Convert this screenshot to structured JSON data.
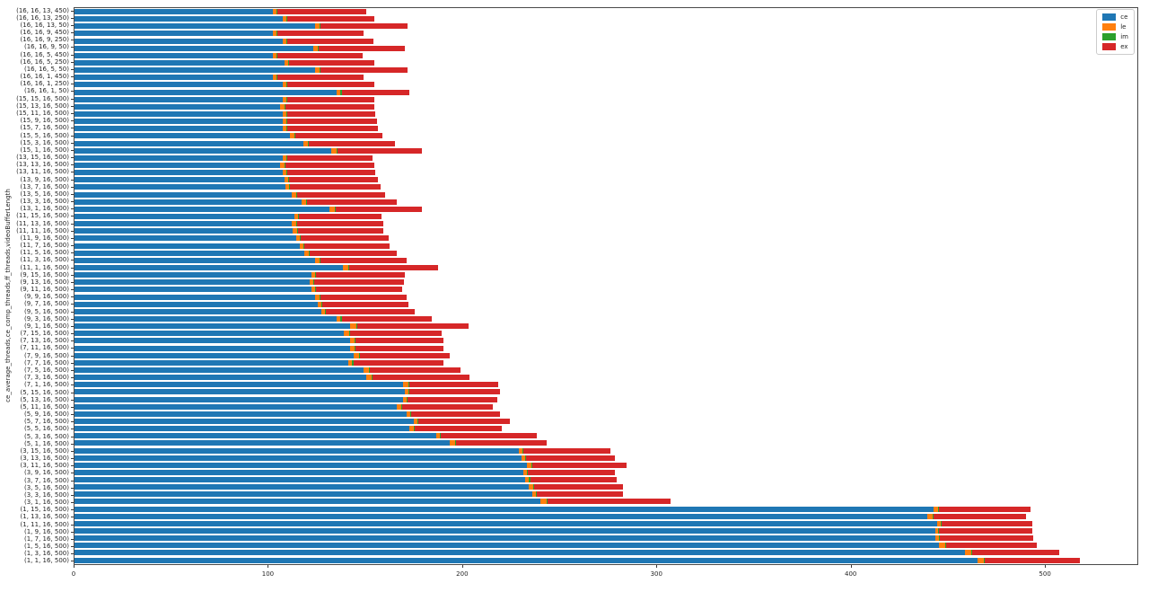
{
  "chart_data": {
    "type": "bar",
    "orientation": "horizontal",
    "stacked": true,
    "title": "",
    "xlabel": "",
    "ylabel": "ce_average_threads,ce_comp_threads,ff_threads,videoBufferLength",
    "xlim": [
      0,
      548
    ],
    "xticks": [
      0,
      100,
      200,
      300,
      400,
      500
    ],
    "grid": false,
    "legend_position": "upper right",
    "categories": [
      "(16, 16, 13, 450)",
      "(16, 16, 13, 250)",
      "(16, 16, 13, 50)",
      "(16, 16, 9, 450)",
      "(16, 16, 9, 250)",
      "(16, 16, 9, 50)",
      "(16, 16, 5, 450)",
      "(16, 16, 5, 250)",
      "(16, 16, 5, 50)",
      "(16, 16, 1, 450)",
      "(16, 16, 1, 250)",
      "(16, 16, 1, 50)",
      "(15, 15, 16, 500)",
      "(15, 13, 16, 500)",
      "(15, 11, 16, 500)",
      "(15, 9, 16, 500)",
      "(15, 7, 16, 500)",
      "(15, 5, 16, 500)",
      "(15, 3, 16, 500)",
      "(15, 1, 16, 500)",
      "(13, 15, 16, 500)",
      "(13, 13, 16, 500)",
      "(13, 11, 16, 500)",
      "(13, 9, 16, 500)",
      "(13, 7, 16, 500)",
      "(13, 5, 16, 500)",
      "(13, 3, 16, 500)",
      "(13, 1, 16, 500)",
      "(11, 15, 16, 500)",
      "(11, 13, 16, 500)",
      "(11, 11, 16, 500)",
      "(11, 9, 16, 500)",
      "(11, 7, 16, 500)",
      "(11, 5, 16, 500)",
      "(11, 3, 16, 500)",
      "(11, 1, 16, 500)",
      "(9, 15, 16, 500)",
      "(9, 13, 16, 500)",
      "(9, 11, 16, 500)",
      "(9, 9, 16, 500)",
      "(9, 7, 16, 500)",
      "(9, 5, 16, 500)",
      "(9, 3, 16, 500)",
      "(9, 1, 16, 500)",
      "(7, 15, 16, 500)",
      "(7, 13, 16, 500)",
      "(7, 11, 16, 500)",
      "(7, 9, 16, 500)",
      "(7, 7, 16, 500)",
      "(7, 5, 16, 500)",
      "(7, 3, 16, 500)",
      "(7, 1, 16, 500)",
      "(5, 15, 16, 500)",
      "(5, 13, 16, 500)",
      "(5, 11, 16, 500)",
      "(5, 9, 16, 500)",
      "(5, 7, 16, 500)",
      "(5, 5, 16, 500)",
      "(5, 3, 16, 500)",
      "(5, 1, 16, 500)",
      "(3, 15, 16, 500)",
      "(3, 13, 16, 500)",
      "(3, 11, 16, 500)",
      "(3, 9, 16, 500)",
      "(3, 7, 16, 500)",
      "(3, 5, 16, 500)",
      "(3, 3, 16, 500)",
      "(3, 1, 16, 500)",
      "(1, 15, 16, 500)",
      "(1, 13, 16, 500)",
      "(1, 11, 16, 500)",
      "(1, 9, 16, 500)",
      "(1, 7, 16, 500)",
      "(1, 5, 16, 500)",
      "(1, 3, 16, 500)",
      "(1, 1, 16, 500)"
    ],
    "series": [
      {
        "name": "ce",
        "color": "#1f77b4",
        "values": [
          102,
          107,
          124,
          102,
          107,
          123,
          102,
          108,
          124,
          102,
          107,
          135,
          107,
          106,
          107,
          107,
          107,
          111,
          118,
          132,
          107,
          106,
          107,
          108,
          108.5,
          112,
          117,
          131,
          113,
          112,
          112.5,
          114,
          116,
          118.5,
          124,
          138,
          122,
          121,
          122,
          124,
          125,
          127,
          135,
          142,
          138.5,
          142,
          142,
          143.5,
          141,
          149,
          150,
          169,
          170,
          169,
          166,
          171,
          174.5,
          172.5,
          186,
          193,
          228.5,
          230,
          233,
          231,
          232,
          234,
          235.5,
          240,
          442,
          439,
          444,
          443,
          443,
          445,
          458.5,
          465
        ]
      },
      {
        "name": "le",
        "color": "#ff7f0e",
        "values": [
          2,
          2,
          2,
          2,
          2,
          2,
          2,
          2,
          2,
          2,
          2,
          2,
          2,
          2,
          2,
          2,
          2,
          2,
          2,
          3,
          2,
          2,
          2,
          2,
          2,
          2,
          2,
          3,
          2,
          2,
          2,
          2,
          2,
          2,
          2,
          3,
          2,
          2,
          2,
          2,
          2,
          2,
          2,
          3,
          3,
          2,
          2,
          3,
          2,
          2.5,
          3,
          3,
          2,
          2,
          2,
          2,
          2,
          2,
          2,
          3,
          2,
          2,
          2,
          2,
          2,
          2,
          2,
          3,
          2.5,
          2.5,
          2,
          1.5,
          2,
          3,
          3,
          3
        ]
      },
      {
        "name": "im",
        "color": "#2ca02c",
        "values": [
          0.5,
          0.5,
          0.5,
          0.5,
          0.5,
          0.5,
          0.5,
          0.5,
          0.5,
          0.5,
          0.5,
          0.5,
          0.5,
          0.5,
          0.5,
          0.5,
          0.5,
          0.5,
          0.5,
          0.5,
          0.5,
          0.5,
          0.5,
          0.5,
          0.5,
          0.5,
          0.5,
          0.5,
          0.5,
          0.5,
          0.5,
          0.5,
          0.5,
          0.5,
          0.5,
          0.5,
          0.5,
          0.5,
          0.5,
          0.5,
          0.5,
          0.5,
          0.5,
          0.5,
          0.5,
          0.5,
          0.5,
          0.5,
          0.5,
          0.5,
          0.5,
          0.5,
          0.5,
          0.5,
          0.5,
          0.5,
          0.5,
          0.5,
          0.5,
          0.5,
          0.5,
          0.5,
          0.5,
          0.5,
          0.5,
          0.5,
          0.5,
          0.5,
          0.5,
          0.5,
          0.5,
          0.5,
          0.5,
          0.5,
          0.5,
          0.5
        ]
      },
      {
        "name": "ex",
        "color": "#d62728",
        "values": [
          45.5,
          45,
          45,
          44.5,
          44.5,
          44.5,
          44,
          44,
          45,
          44.5,
          45,
          35,
          45,
          46,
          45.5,
          46,
          46.5,
          45,
          44.5,
          43.5,
          44,
          46,
          45.5,
          45.5,
          46.5,
          45.5,
          46.5,
          44.5,
          42.5,
          44.5,
          44,
          45,
          43.5,
          45,
          44.5,
          45.5,
          45.5,
          46,
          44,
          44.5,
          44.5,
          45.5,
          46.5,
          57.5,
          47,
          45.5,
          45.5,
          46,
          46.5,
          46.5,
          50,
          45.5,
          46.5,
          46,
          47,
          45.5,
          47,
          45,
          49.5,
          46.5,
          45,
          45.5,
          48.5,
          44.5,
          44.5,
          46,
          44.5,
          63.5,
          47,
          48,
          46.5,
          48,
          48,
          47,
          45,
          49
        ]
      }
    ],
    "legend_entries": [
      {
        "label": "ce",
        "color": "#1f77b4"
      },
      {
        "label": "le",
        "color": "#ff7f0e"
      },
      {
        "label": "im",
        "color": "#2ca02c"
      },
      {
        "label": "ex",
        "color": "#d62728"
      }
    ]
  },
  "colors": {
    "background": "#ffffff",
    "spine": "#4a4a4a",
    "tick_text": "#262626",
    "legend_border": "#cccccc"
  }
}
